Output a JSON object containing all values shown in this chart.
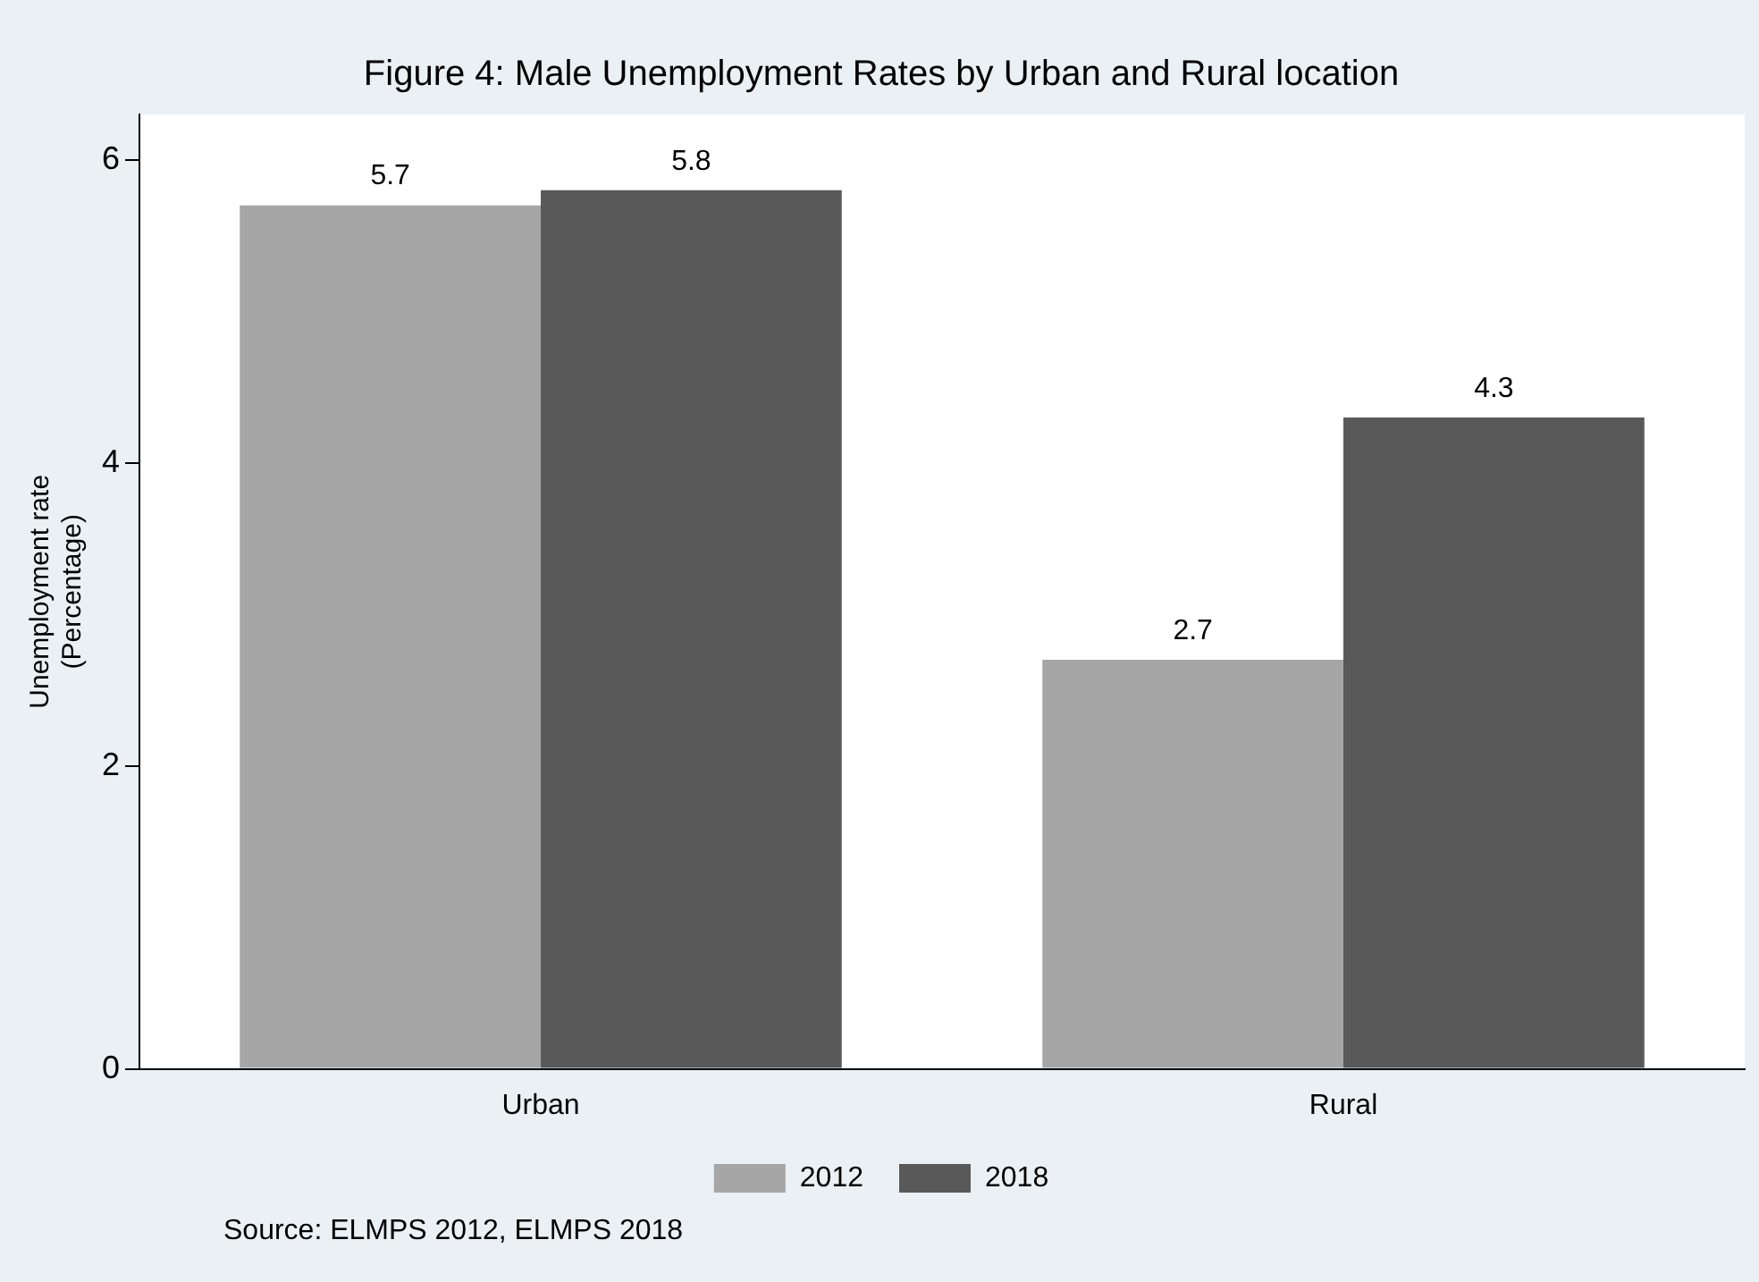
{
  "chart_data": {
    "type": "bar",
    "title": "Figure 4: Male Unemployment Rates by Urban and Rural location",
    "ylabel": "Unemployment rate\n(Percentage)",
    "categories": [
      "Urban",
      "Rural"
    ],
    "series": [
      {
        "name": "2012",
        "color": "#a6a6a6",
        "values": [
          5.7,
          2.7
        ]
      },
      {
        "name": "2018",
        "color": "#595959",
        "values": [
          5.8,
          4.3
        ]
      }
    ],
    "ylim": [
      0,
      6.3
    ],
    "yticks": [
      0,
      2,
      4,
      6
    ],
    "grid": false,
    "legend": "bottom",
    "data_labels": true,
    "annotations": [
      "Source: ELMPS 2012, ELMPS 2018"
    ]
  }
}
